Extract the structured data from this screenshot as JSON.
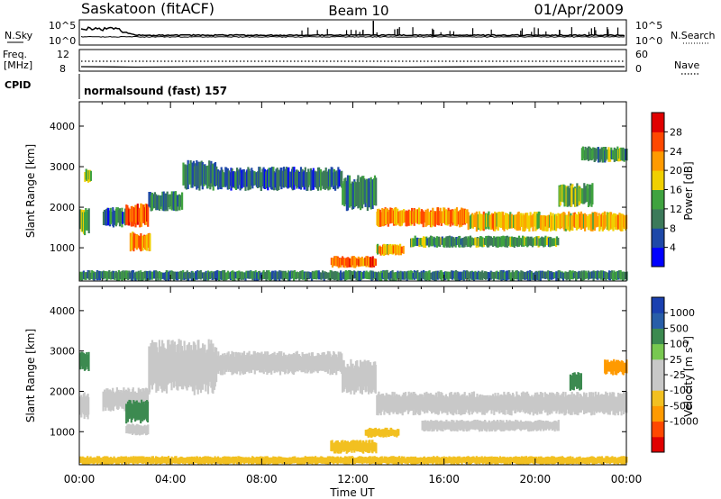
{
  "header": {
    "station": "Saskatoon (fitACF)",
    "beam": "Beam 10",
    "date": "01/Apr/2009"
  },
  "noise_panel": {
    "left_label": "N.Sky",
    "left_ticks": [
      "10^5",
      "10^0"
    ],
    "right_ticks": [
      "10^5",
      "10^0"
    ],
    "right_label": "N.Search"
  },
  "freq_panel": {
    "left_label_1": "Freq.",
    "left_label_2": "[MHz]",
    "left_ticks": [
      "12",
      "8"
    ],
    "right_ticks": [
      "60",
      "0"
    ],
    "right_label": "Nave"
  },
  "cpid_panel": {
    "label": "CPID",
    "program": "normalsound (fast) 157"
  },
  "colors": {
    "power_scale": [
      "#0000ff",
      "#1e48a8",
      "#3c7a5a",
      "#3fa33f",
      "#f0d000",
      "#ff9a00",
      "#ff4800",
      "#e00000"
    ],
    "velocity_scale": [
      "#e00000",
      "#ff4800",
      "#ff9a00",
      "#f2c020",
      "#c8c8c8",
      "#c8c8c8",
      "#78c850",
      "#3c8a50",
      "#285ea8",
      "#1a40b0"
    ]
  },
  "chart_data": [
    {
      "type": "heatmap",
      "title": "",
      "xlabel": "",
      "ylabel": "Slant Range [km]",
      "x_ticks": [
        "00:00",
        "04:00",
        "08:00",
        "12:00",
        "16:00",
        "20:00",
        "00:00"
      ],
      "xlim_hours": [
        0,
        24
      ],
      "y_ticks": [
        1000,
        2000,
        3000,
        4000
      ],
      "ylim": [
        180,
        4600
      ],
      "colorbar_label": "Power [dB]",
      "colorbar_ticks": [
        "4",
        "8",
        "12",
        "16",
        "20",
        "24",
        "28"
      ],
      "colorbar_range": [
        0,
        32
      ],
      "grid": false,
      "regions": [
        {
          "t0": 0.0,
          "t1": 0.4,
          "r0": 1300,
          "r1": 2000,
          "level": 14
        },
        {
          "t0": 0.2,
          "t1": 0.5,
          "r0": 2600,
          "r1": 2950,
          "level": 18
        },
        {
          "t0": 1.0,
          "t1": 2.0,
          "r0": 1500,
          "r1": 2000,
          "level": 8
        },
        {
          "t0": 2.0,
          "t1": 3.0,
          "r0": 1500,
          "r1": 2100,
          "level": 26
        },
        {
          "t0": 2.2,
          "t1": 3.1,
          "r0": 900,
          "r1": 1400,
          "level": 22
        },
        {
          "t0": 3.0,
          "t1": 4.5,
          "r0": 1900,
          "r1": 2400,
          "level": 10
        },
        {
          "t0": 4.5,
          "t1": 6.0,
          "r0": 2400,
          "r1": 3200,
          "level": 10
        },
        {
          "t0": 6.0,
          "t1": 11.5,
          "r0": 2400,
          "r1": 3000,
          "level": 8
        },
        {
          "t0": 11.5,
          "t1": 13.0,
          "r0": 1900,
          "r1": 2800,
          "level": 10
        },
        {
          "t0": 11.0,
          "t1": 13.0,
          "r0": 500,
          "r1": 800,
          "level": 24
        },
        {
          "t0": 13.0,
          "t1": 14.2,
          "r0": 800,
          "r1": 1100,
          "level": 20
        },
        {
          "t0": 13.0,
          "t1": 17.0,
          "r0": 1500,
          "r1": 2000,
          "level": 22
        },
        {
          "t0": 14.5,
          "t1": 21.0,
          "r0": 1000,
          "r1": 1300,
          "level": 12
        },
        {
          "t0": 17.0,
          "t1": 24.0,
          "r0": 1400,
          "r1": 1900,
          "level": 20
        },
        {
          "t0": 21.0,
          "t1": 22.5,
          "r0": 2000,
          "r1": 2600,
          "level": 14
        },
        {
          "t0": 22.0,
          "t1": 24.0,
          "r0": 3100,
          "r1": 3500,
          "level": 12
        },
        {
          "t0": 0.0,
          "t1": 24.0,
          "r0": 180,
          "r1": 450,
          "level": 10
        }
      ]
    },
    {
      "type": "heatmap",
      "title": "",
      "xlabel": "Time UT",
      "ylabel": "Slant Range [km]",
      "x_ticks": [
        "00:00",
        "04:00",
        "08:00",
        "12:00",
        "16:00",
        "20:00",
        "00:00"
      ],
      "xlim_hours": [
        0,
        24
      ],
      "y_ticks": [
        1000,
        2000,
        3000,
        4000
      ],
      "ylim": [
        180,
        4600
      ],
      "colorbar_label": "Velocity [m s^-1]",
      "colorbar_ticks": [
        "1000",
        "500",
        "100",
        "25",
        "-25",
        "-100",
        "-500",
        "-1000"
      ],
      "grid": false,
      "regions": [
        {
          "t0": 0.0,
          "t1": 0.4,
          "r0": 2500,
          "r1": 3000,
          "value": 120
        },
        {
          "t0": 0.0,
          "t1": 0.4,
          "r0": 1300,
          "r1": 2000,
          "value": 0
        },
        {
          "t0": 1.0,
          "t1": 3.0,
          "r0": 1500,
          "r1": 2100,
          "value": 0
        },
        {
          "t0": 2.0,
          "t1": 3.0,
          "r0": 1200,
          "r1": 1800,
          "value": 120
        },
        {
          "t0": 2.0,
          "t1": 3.0,
          "r0": 900,
          "r1": 1200,
          "value": 0
        },
        {
          "t0": 3.0,
          "t1": 6.0,
          "r0": 1900,
          "r1": 3300,
          "value": 0
        },
        {
          "t0": 6.0,
          "t1": 11.5,
          "r0": 2400,
          "r1": 3000,
          "value": 0
        },
        {
          "t0": 11.5,
          "t1": 13.0,
          "r0": 1900,
          "r1": 2800,
          "value": 0
        },
        {
          "t0": 11.0,
          "t1": 13.0,
          "r0": 450,
          "r1": 800,
          "value": -60
        },
        {
          "t0": 12.5,
          "t1": 14.0,
          "r0": 850,
          "r1": 1100,
          "value": -60
        },
        {
          "t0": 13.0,
          "t1": 24.0,
          "r0": 1400,
          "r1": 2000,
          "value": 0
        },
        {
          "t0": 15.0,
          "t1": 21.0,
          "r0": 1000,
          "r1": 1300,
          "value": 0
        },
        {
          "t0": 21.5,
          "t1": 22.0,
          "r0": 2000,
          "r1": 2500,
          "value": 150
        },
        {
          "t0": 23.0,
          "t1": 24.0,
          "r0": 2400,
          "r1": 2800,
          "value": -200
        },
        {
          "t0": 0.0,
          "t1": 24.0,
          "r0": 180,
          "r1": 400,
          "value": -60
        }
      ]
    }
  ]
}
